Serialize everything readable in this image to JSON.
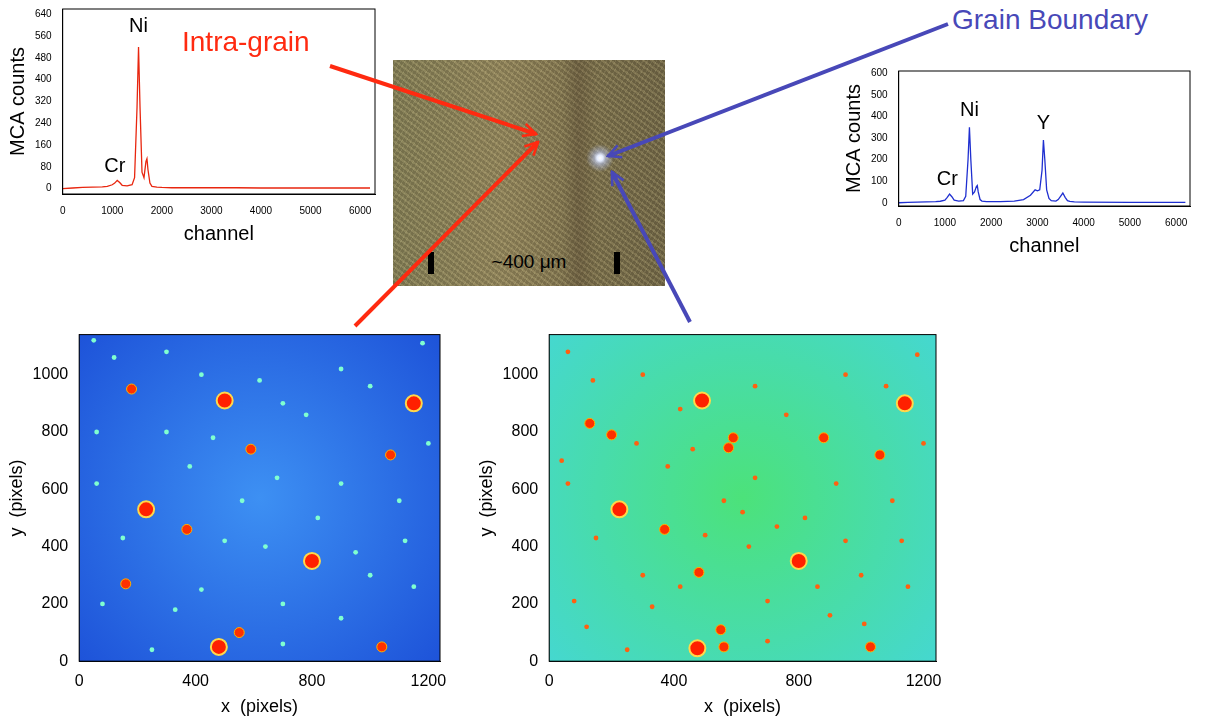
{
  "chart_data": [
    {
      "type": "line",
      "x_label": "channel",
      "y_label": "MCA counts",
      "color": "#e8260f",
      "grid": false,
      "xlim": [
        0,
        6300
      ],
      "ylim": [
        -20,
        660
      ],
      "xticks": [
        0,
        1000,
        2000,
        3000,
        4000,
        5000,
        6000
      ],
      "yticks": [
        0,
        80,
        160,
        240,
        320,
        400,
        480,
        560,
        640
      ],
      "x": [
        0,
        200,
        400,
        600,
        800,
        900,
        1000,
        1050,
        1100,
        1150,
        1200,
        1300,
        1400,
        1450,
        1500,
        1530,
        1560,
        1600,
        1640,
        1680,
        1700,
        1720,
        1760,
        1800,
        1900,
        2000,
        2200,
        2500,
        3000,
        3500,
        4000,
        5000,
        6000,
        6200
      ],
      "values": [
        0,
        2,
        4,
        5,
        6,
        8,
        14,
        20,
        30,
        22,
        12,
        10,
        14,
        40,
        300,
        520,
        300,
        60,
        40,
        100,
        110,
        70,
        20,
        8,
        5,
        4,
        3,
        3,
        3,
        3,
        2,
        2,
        2,
        2
      ],
      "annotations": [
        {
          "text": "Cr",
          "x": 1050,
          "y": 45
        },
        {
          "text": "Ni",
          "x": 1530,
          "y": 560
        }
      ]
    },
    {
      "type": "line",
      "x_label": "channel",
      "y_label": "MCA counts",
      "color": "#1f2fd0",
      "grid": false,
      "xlim": [
        0,
        6300
      ],
      "ylim": [
        -15,
        610
      ],
      "xticks": [
        0,
        1000,
        2000,
        3000,
        4000,
        5000,
        6000
      ],
      "yticks": [
        0,
        100,
        200,
        300,
        400,
        500,
        600
      ],
      "x": [
        0,
        200,
        400,
        600,
        800,
        900,
        1000,
        1050,
        1100,
        1150,
        1200,
        1300,
        1400,
        1450,
        1500,
        1530,
        1560,
        1600,
        1640,
        1680,
        1700,
        1720,
        1760,
        1800,
        1900,
        2000,
        2200,
        2500,
        2700,
        2850,
        2950,
        3000,
        3050,
        3100,
        3130,
        3160,
        3200,
        3250,
        3300,
        3400,
        3450,
        3500,
        3550,
        3600,
        3650,
        3700,
        3800,
        4000,
        5000,
        6000,
        6200
      ],
      "values": [
        0,
        2,
        3,
        4,
        5,
        7,
        12,
        25,
        40,
        28,
        12,
        8,
        10,
        30,
        200,
        350,
        200,
        40,
        50,
        75,
        80,
        50,
        15,
        8,
        5,
        5,
        5,
        8,
        15,
        35,
        60,
        55,
        60,
        150,
        290,
        200,
        60,
        20,
        10,
        8,
        15,
        30,
        45,
        25,
        10,
        6,
        4,
        3,
        2,
        2,
        2
      ],
      "annotations": [
        {
          "text": "Cr",
          "x": 1050,
          "y": 60
        },
        {
          "text": "Ni",
          "x": 1530,
          "y": 380
        },
        {
          "text": "Y",
          "x": 3130,
          "y": 320
        }
      ]
    },
    {
      "type": "bubble",
      "x_label": "x  (pixels)",
      "y_label": "y  (pixels)",
      "grid": false,
      "xlim": [
        0,
        1240
      ],
      "ylim": [
        0,
        1140
      ],
      "xticks": [
        0,
        400,
        800,
        1200
      ],
      "yticks": [
        0,
        200,
        400,
        600,
        800,
        1000
      ],
      "series": [
        {
          "color": "#7fffd0",
          "size": 1.2,
          "points": [
            [
              50,
              1120
            ],
            [
              120,
              1060
            ],
            [
              300,
              1080
            ],
            [
              420,
              1000
            ],
            [
              620,
              980
            ],
            [
              700,
              900
            ],
            [
              780,
              860
            ],
            [
              900,
              1020
            ],
            [
              1000,
              960
            ],
            [
              1180,
              1110
            ],
            [
              60,
              800
            ],
            [
              300,
              800
            ],
            [
              460,
              780
            ],
            [
              680,
              640
            ],
            [
              900,
              620
            ],
            [
              1100,
              560
            ],
            [
              150,
              430
            ],
            [
              500,
              420
            ],
            [
              640,
              400
            ],
            [
              950,
              380
            ],
            [
              1120,
              420
            ],
            [
              80,
              200
            ],
            [
              330,
              180
            ],
            [
              420,
              250
            ],
            [
              700,
              200
            ],
            [
              900,
              150
            ],
            [
              1150,
              260
            ],
            [
              250,
              40
            ],
            [
              700,
              60
            ],
            [
              1000,
              300
            ],
            [
              560,
              560
            ],
            [
              820,
              500
            ],
            [
              60,
              620
            ],
            [
              380,
              680
            ],
            [
              1200,
              760
            ]
          ]
        },
        {
          "color": "#ff3000",
          "size": 2.5,
          "points": [
            [
              590,
              740
            ],
            [
              1070,
              720
            ],
            [
              370,
              460
            ],
            [
              550,
              100
            ],
            [
              1040,
              50
            ],
            [
              160,
              270
            ],
            [
              180,
              950
            ]
          ]
        },
        {
          "color": "#ff2000",
          "size": 4,
          "points": [
            [
              500,
              910
            ],
            [
              1150,
              900
            ],
            [
              230,
              530
            ],
            [
              800,
              350
            ],
            [
              480,
              50
            ]
          ]
        }
      ]
    },
    {
      "type": "bubble",
      "x_label": "x  (pixels)",
      "y_label": "y  (pixels)",
      "grid": false,
      "xlim": [
        0,
        1240
      ],
      "ylim": [
        0,
        1140
      ],
      "xticks": [
        0,
        400,
        800,
        1200
      ],
      "yticks": [
        0,
        200,
        400,
        600,
        800,
        1000
      ],
      "series": [
        {
          "color": "#ff6010",
          "size": 1.2,
          "points": [
            [
              60,
              1080
            ],
            [
              140,
              980
            ],
            [
              300,
              1000
            ],
            [
              420,
              880
            ],
            [
              660,
              960
            ],
            [
              760,
              860
            ],
            [
              950,
              1000
            ],
            [
              1080,
              960
            ],
            [
              1180,
              1070
            ],
            [
              40,
              700
            ],
            [
              280,
              760
            ],
            [
              460,
              740
            ],
            [
              660,
              640
            ],
            [
              920,
              620
            ],
            [
              1100,
              560
            ],
            [
              150,
              430
            ],
            [
              500,
              440
            ],
            [
              640,
              400
            ],
            [
              950,
              420
            ],
            [
              1130,
              420
            ],
            [
              80,
              210
            ],
            [
              330,
              190
            ],
            [
              420,
              260
            ],
            [
              700,
              210
            ],
            [
              900,
              160
            ],
            [
              1150,
              260
            ],
            [
              250,
              40
            ],
            [
              700,
              70
            ],
            [
              1000,
              300
            ],
            [
              560,
              560
            ],
            [
              820,
              500
            ],
            [
              60,
              620
            ],
            [
              380,
              680
            ],
            [
              1200,
              760
            ],
            [
              620,
              520
            ],
            [
              730,
              470
            ],
            [
              300,
              300
            ],
            [
              860,
              260
            ],
            [
              1010,
              130
            ],
            [
              120,
              120
            ]
          ]
        },
        {
          "color": "#ff3000",
          "size": 2.5,
          "points": [
            [
              590,
              780
            ],
            [
              575,
              745
            ],
            [
              880,
              780
            ],
            [
              1060,
              720
            ],
            [
              370,
              460
            ],
            [
              480,
              310
            ],
            [
              550,
              110
            ],
            [
              560,
              50
            ],
            [
              1030,
              50
            ],
            [
              130,
              830
            ],
            [
              200,
              790
            ]
          ]
        },
        {
          "color": "#ff2000",
          "size": 4,
          "points": [
            [
              490,
              910
            ],
            [
              1140,
              900
            ],
            [
              225,
              530
            ],
            [
              800,
              350
            ],
            [
              475,
              45
            ]
          ]
        }
      ]
    }
  ],
  "photo": {
    "scale_label": "~400 μm"
  },
  "callouts": [
    {
      "text": "Intra-grain",
      "color": "#ff2a10"
    },
    {
      "text": "Grain Boundary",
      "color": "#4848b8"
    }
  ]
}
